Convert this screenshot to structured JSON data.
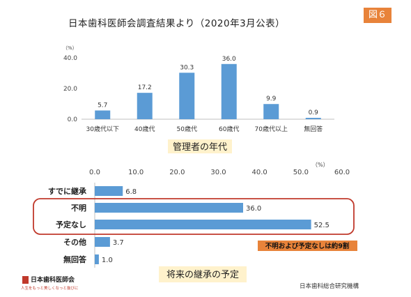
{
  "header": {
    "title": "日本歯科医師会調査結果より（2020年3月公表）",
    "badge": "図６"
  },
  "chart_data": [
    {
      "type": "bar",
      "title": "管理者の年代",
      "unit": "（%）",
      "categories": [
        "30歳代以下",
        "40歳代",
        "50歳代",
        "60歳代",
        "70歳代以上",
        "無回答"
      ],
      "values": [
        5.7,
        17.2,
        30.3,
        36.0,
        9.9,
        0.9
      ],
      "value_labels": [
        "5.7",
        "17.2",
        "30.3",
        "36.0",
        "9.9",
        "0.9"
      ],
      "ylim": [
        0,
        40
      ],
      "yticks": [
        "0.0",
        "20.0",
        "40.0"
      ],
      "color": "#5b9bd5",
      "grid": false
    },
    {
      "type": "bar",
      "orientation": "horizontal",
      "title": "将来の継承の予定",
      "unit": "（%）",
      "categories": [
        "すでに継承",
        "不明",
        "予定なし",
        "その他",
        "無回答"
      ],
      "values": [
        6.8,
        36.0,
        52.5,
        3.7,
        1.0
      ],
      "value_labels": [
        "6.8",
        "36.0",
        "52.5",
        "3.7",
        "1.0"
      ],
      "xlim": [
        0,
        60
      ],
      "xticks": [
        "0.0",
        "10.0",
        "20.0",
        "30.0",
        "40.0",
        "50.0",
        "60.0"
      ],
      "color": "#5b9bd5",
      "grid": false,
      "highlight": {
        "categories": [
          "不明",
          "予定なし"
        ],
        "color": "#c0392b",
        "note": "不明および予定なしは約9割",
        "note_bg": "#e8833a"
      }
    }
  ],
  "footer": {
    "logo_name": "日本歯科医師会",
    "logo_tagline": "人生をもっと美しくなっと抜びに",
    "credit": "日本歯科総合研究機構"
  }
}
